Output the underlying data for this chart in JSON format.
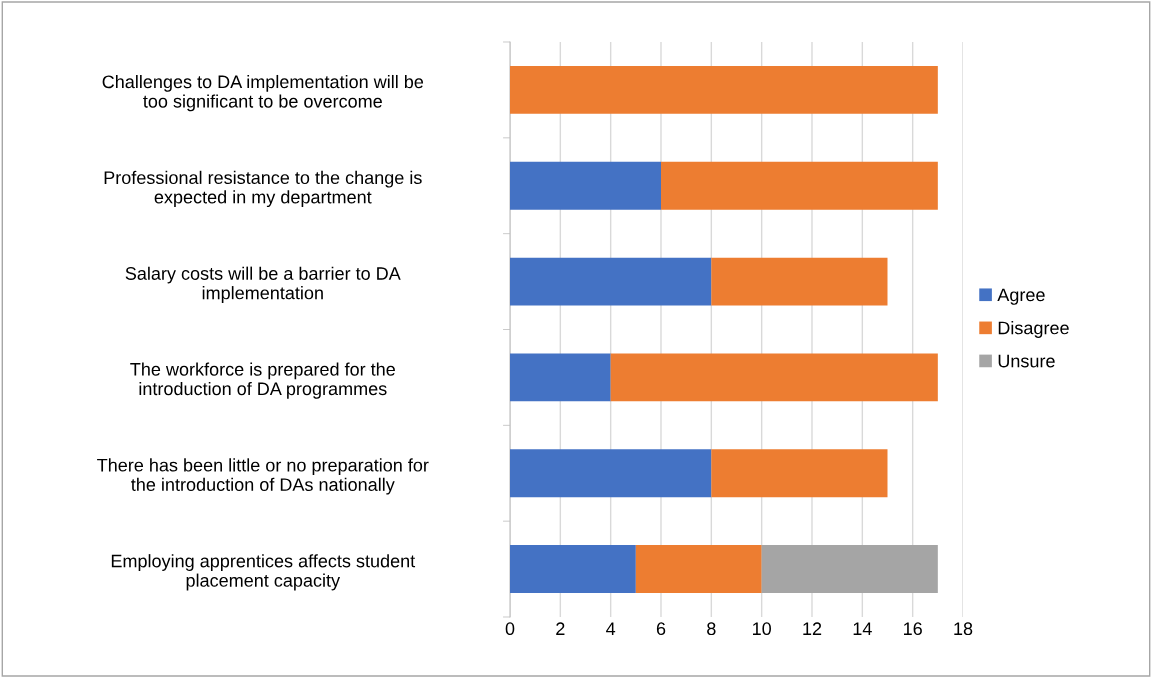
{
  "chart_data": {
    "type": "bar",
    "orientation": "horizontal",
    "stacked": true,
    "categories": [
      "Challenges to DA implementation will be\ntoo significant to be overcome",
      "Professional resistance to the change is\nexpected in my department",
      "Salary costs will be a barrier to DA\nimplementation",
      "The workforce is prepared for the\nintroduction of DA programmes",
      "There has been little or no preparation for\nthe introduction of DAs nationally",
      "Employing apprentices affects student\nplacement capacity"
    ],
    "series": [
      {
        "name": "Agree",
        "color": "#4472c4",
        "values": [
          0,
          6,
          8,
          4,
          8,
          5
        ]
      },
      {
        "name": "Disagree",
        "color": "#ed7d31",
        "values": [
          17,
          11,
          7,
          13,
          7,
          5
        ]
      },
      {
        "name": "Unsure",
        "color": "#a5a5a5",
        "values": [
          0,
          0,
          0,
          0,
          0,
          7
        ]
      }
    ],
    "xlim": [
      0,
      18
    ],
    "xticks": [
      0,
      2,
      4,
      6,
      8,
      10,
      12,
      14,
      16,
      18
    ],
    "grid": "x",
    "legend": "right"
  }
}
